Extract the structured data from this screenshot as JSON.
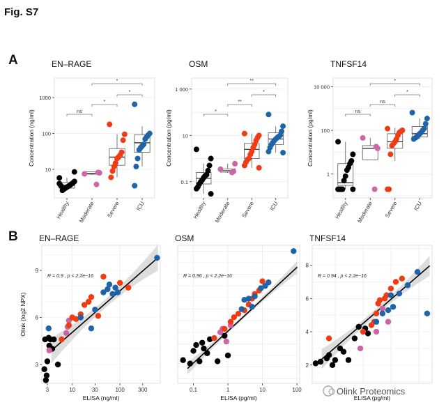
{
  "figure": {
    "title": "Fig. S7",
    "panel_a_label": "A",
    "panel_b_label": "B",
    "watermark": "Olink Proteomics"
  },
  "colors": {
    "Healthy": "#000000",
    "Moderate": "#cc66a5",
    "Severe": "#f03c14",
    "ICU": "#1f63a8",
    "fit_line": "#000000",
    "ci_band": "#cfcfcf",
    "grid": "#ebebeb"
  },
  "chart_data": [
    {
      "type": "boxplot",
      "title": "EN–RAGE",
      "ylabel": "Concentration (ng/ml)",
      "yscale": "log10",
      "ylim": [
        1.6,
        3500
      ],
      "yticks": [
        10,
        100,
        1000
      ],
      "ytick_labels": [
        "10",
        "100",
        "1000"
      ],
      "categories": [
        "Healthy",
        "Moderate",
        "Severe",
        "ICU"
      ],
      "groups": [
        {
          "name": "Healthy",
          "values": [
            5.8,
            4.6,
            4.2,
            3.9,
            3.6,
            3.4,
            3.2,
            3.0,
            2.8,
            2.6,
            3.5,
            4.0,
            8.5
          ]
        },
        {
          "name": "Moderate",
          "values": [
            7.5,
            8.0,
            8.2,
            3.8
          ]
        },
        {
          "name": "Severe",
          "values": [
            180,
            95,
            65,
            30,
            25,
            22,
            20,
            15,
            12,
            9,
            6
          ]
        },
        {
          "name": "ICU",
          "values": [
            650,
            100,
            90,
            80,
            70,
            50,
            45,
            40,
            35,
            20,
            12,
            3.5
          ]
        }
      ],
      "boxes": [
        {
          "q1": 3.0,
          "median": 3.6,
          "q3": 4.3,
          "low": 2.6,
          "high": 5.8
        },
        {
          "q1": 7.3,
          "median": 7.8,
          "q3": 8.6,
          "low": 7.0,
          "high": 8.8
        },
        {
          "q1": 13,
          "median": 22,
          "q3": 38,
          "low": 6,
          "high": 95
        },
        {
          "q1": 30,
          "median": 55,
          "q3": 92,
          "low": 12,
          "high": 160
        }
      ],
      "significance": [
        {
          "from": "Healthy",
          "to": "Moderate",
          "label": "ns"
        },
        {
          "from": "Moderate",
          "to": "Severe",
          "label": "*"
        },
        {
          "from": "Severe",
          "to": "ICU",
          "label": "*"
        },
        {
          "from": "Moderate",
          "to": "ICU",
          "label": "*"
        }
      ]
    },
    {
      "type": "boxplot",
      "title": "OSM",
      "ylabel": "Concentration (pg/ml)",
      "yscale": "log10",
      "ylim": [
        0.02,
        3000
      ],
      "yticks": [
        0.1,
        10,
        1000
      ],
      "ytick_labels": [
        "0.1",
        "10",
        "1 000"
      ],
      "categories": [
        "Healthy",
        "Moderate",
        "Severe",
        "ICU"
      ],
      "groups": [
        {
          "name": "Healthy",
          "values": [
            2.5,
            1.0,
            0.5,
            0.3,
            0.2,
            0.18,
            0.15,
            0.12,
            0.1,
            0.08,
            0.06,
            0.05,
            0.03
          ]
        },
        {
          "name": "Moderate",
          "values": [
            0.35,
            0.6,
            0.28,
            0.25
          ]
        },
        {
          "name": "Severe",
          "values": [
            12,
            10,
            8,
            6,
            4,
            3,
            2,
            1.5,
            1.0,
            0.9,
            0.7,
            0.5,
            0.4
          ]
        },
        {
          "name": "ICU",
          "values": [
            80,
            25,
            15,
            10,
            9,
            8,
            7,
            6,
            5,
            4,
            3,
            2,
            1.8
          ]
        }
      ],
      "boxes": [
        {
          "q1": 0.08,
          "median": 0.14,
          "q3": 0.25,
          "low": 0.03,
          "high": 0.6
        },
        {
          "q1": 0.26,
          "median": 0.3,
          "q3": 0.36,
          "low": 0.24,
          "high": 0.6
        },
        {
          "q1": 1.0,
          "median": 2.5,
          "q3": 4.5,
          "low": 0.4,
          "high": 12
        },
        {
          "q1": 4.0,
          "median": 7.0,
          "q3": 13,
          "low": 1.8,
          "high": 25
        }
      ],
      "significance": [
        {
          "from": "Healthy",
          "to": "Moderate",
          "label": "*"
        },
        {
          "from": "Moderate",
          "to": "Severe",
          "label": "**"
        },
        {
          "from": "Severe",
          "to": "ICU",
          "label": "*"
        },
        {
          "from": "Moderate",
          "to": "ICU",
          "label": "**"
        }
      ]
    },
    {
      "type": "boxplot",
      "title": "TNFSF14",
      "ylabel": "Concentration (pg/ml)",
      "yscale": "log10",
      "ylim": [
        0.08,
        25000
      ],
      "yticks": [
        1,
        100,
        10000
      ],
      "ytick_labels": [
        "1",
        "100",
        "10 000"
      ],
      "categories": [
        "Healthy",
        "Moderate",
        "Severe",
        "ICU"
      ],
      "groups": [
        {
          "name": "Healthy",
          "values": [
            30,
            8,
            4,
            3,
            2,
            1.5,
            0.8,
            0.5,
            0.2,
            0.2,
            0.2,
            0.2,
            0.2
          ]
        },
        {
          "name": "Moderate",
          "values": [
            45,
            15,
            18,
            0.2
          ]
        },
        {
          "name": "Severe",
          "values": [
            120,
            100,
            90,
            80,
            60,
            40,
            30,
            25,
            20,
            8,
            0.2,
            0.2
          ]
        },
        {
          "name": "ICU",
          "values": [
            650,
            350,
            200,
            120,
            100,
            80,
            70,
            60,
            50,
            45,
            40
          ]
        }
      ],
      "boxes": [
        {
          "q1": 0.3,
          "median": 0.4,
          "q3": 3.0,
          "low": 0.2,
          "high": 30
        },
        {
          "q1": 4.5,
          "median": 15,
          "q3": 20,
          "low": 4.5,
          "high": 45
        },
        {
          "q1": 15,
          "median": 30,
          "q3": 70,
          "low": 4,
          "high": 130
        },
        {
          "q1": 50,
          "median": 70,
          "q3": 150,
          "low": 40,
          "high": 350
        }
      ],
      "significance": [
        {
          "from": "Healthy",
          "to": "Moderate",
          "label": "ns"
        },
        {
          "from": "Moderate",
          "to": "Severe",
          "label": "ns"
        },
        {
          "from": "Severe",
          "to": "ICU",
          "label": "*"
        },
        {
          "from": "Moderate",
          "to": "ICU",
          "label": "*"
        }
      ]
    },
    {
      "type": "scatter",
      "title": "EN–RAGE",
      "xlabel": "ELISA (ng/ml)",
      "ylabel": "Olink (log2 NPX)",
      "xscale": "log10",
      "xlim": [
        2.3,
        700
      ],
      "ylim": [
        1.8,
        10.6
      ],
      "xticks": [
        3,
        10,
        30,
        100,
        300
      ],
      "xtick_labels": [
        "3",
        "10",
        "30",
        "100",
        "300"
      ],
      "yticks": [
        3,
        6,
        9
      ],
      "ytick_labels": [
        "3",
        "6",
        "9"
      ],
      "annotation": "R = 0.9 , p < 2.2e−16",
      "fit": {
        "intercept": 2.4,
        "slope": 2.65,
        "ci": 0.55
      },
      "points": [
        {
          "x": 2.8,
          "y": 2.0,
          "g": "Healthy"
        },
        {
          "x": 2.9,
          "y": 2.3,
          "g": "Healthy"
        },
        {
          "x": 3.0,
          "y": 3.2,
          "g": "Healthy"
        },
        {
          "x": 3.2,
          "y": 4.7,
          "g": "Healthy"
        },
        {
          "x": 3.3,
          "y": 4.2,
          "g": "Healthy"
        },
        {
          "x": 3.5,
          "y": 4.6,
          "g": "Healthy"
        },
        {
          "x": 3.8,
          "y": 4.0,
          "g": "Healthy"
        },
        {
          "x": 4.1,
          "y": 4.6,
          "g": "Healthy"
        },
        {
          "x": 5.0,
          "y": 3.0,
          "g": "Healthy"
        },
        {
          "x": 2.7,
          "y": 4.6,
          "g": "Healthy"
        },
        {
          "x": 2.6,
          "y": 2.7,
          "g": "Healthy"
        },
        {
          "x": 3.3,
          "y": 3.9,
          "g": "Moderate"
        },
        {
          "x": 7.5,
          "y": 5.0,
          "g": "Moderate"
        },
        {
          "x": 8.0,
          "y": 5.4,
          "g": "Moderate"
        },
        {
          "x": 8.5,
          "y": 5.8,
          "g": "Moderate"
        },
        {
          "x": 6.0,
          "y": 4.6,
          "g": "Severe"
        },
        {
          "x": 8.5,
          "y": 5.5,
          "g": "Severe"
        },
        {
          "x": 10,
          "y": 6.0,
          "g": "Severe"
        },
        {
          "x": 12,
          "y": 5.9,
          "g": "Severe"
        },
        {
          "x": 15,
          "y": 6.2,
          "g": "Severe"
        },
        {
          "x": 18,
          "y": 6.8,
          "g": "Severe"
        },
        {
          "x": 22,
          "y": 7.0,
          "g": "Severe"
        },
        {
          "x": 25,
          "y": 7.3,
          "g": "Severe"
        },
        {
          "x": 35,
          "y": 6.1,
          "g": "Severe"
        },
        {
          "x": 45,
          "y": 8.6,
          "g": "Severe"
        },
        {
          "x": 100,
          "y": 8.2,
          "g": "Severe"
        },
        {
          "x": 150,
          "y": 7.9,
          "g": "Severe"
        },
        {
          "x": 3.2,
          "y": 5.3,
          "g": "ICU"
        },
        {
          "x": 15,
          "y": 6.0,
          "g": "ICU"
        },
        {
          "x": 25,
          "y": 5.3,
          "g": "ICU"
        },
        {
          "x": 30,
          "y": 6.5,
          "g": "ICU"
        },
        {
          "x": 45,
          "y": 7.6,
          "g": "ICU"
        },
        {
          "x": 55,
          "y": 7.8,
          "g": "ICU"
        },
        {
          "x": 60,
          "y": 8.1,
          "g": "ICU"
        },
        {
          "x": 70,
          "y": 7.5,
          "g": "ICU"
        },
        {
          "x": 80,
          "y": 7.9,
          "g": "ICU"
        },
        {
          "x": 90,
          "y": 7.6,
          "g": "ICU"
        },
        {
          "x": 600,
          "y": 9.8,
          "g": "ICU"
        }
      ]
    },
    {
      "type": "scatter",
      "title": "OSM",
      "xlabel": "ELISA (pg/ml)",
      "ylabel": "",
      "xscale": "log10",
      "xlim": [
        0.035,
        120
      ],
      "ylim": [
        -0.4,
        11.5
      ],
      "xticks": [
        0.1,
        1,
        10,
        100
      ],
      "xtick_labels": [
        "0.1",
        "1",
        "10",
        "100"
      ],
      "yticks": [],
      "ytick_labels": [],
      "annotation": "R = 0.96 , p < 2.2e−16",
      "fit": {
        "intercept": 4.1,
        "slope": 2.75,
        "ci": 0.35
      },
      "points": [
        {
          "x": 0.05,
          "y": 1.6,
          "g": "Healthy"
        },
        {
          "x": 0.08,
          "y": 1.3,
          "g": "Healthy"
        },
        {
          "x": 0.1,
          "y": 2.4,
          "g": "Healthy"
        },
        {
          "x": 0.12,
          "y": 2.9,
          "g": "Healthy"
        },
        {
          "x": 0.15,
          "y": 1.5,
          "g": "Healthy"
        },
        {
          "x": 0.18,
          "y": 3.1,
          "g": "Healthy"
        },
        {
          "x": 0.2,
          "y": 2.6,
          "g": "Healthy"
        },
        {
          "x": 0.25,
          "y": 2.2,
          "g": "Healthy"
        },
        {
          "x": 0.3,
          "y": 3.4,
          "g": "Healthy"
        },
        {
          "x": 0.5,
          "y": 1.5,
          "g": "Healthy"
        },
        {
          "x": 0.8,
          "y": 3.7,
          "g": "Healthy"
        },
        {
          "x": 1.0,
          "y": 2.0,
          "g": "Healthy"
        },
        {
          "x": 0.6,
          "y": 4.0,
          "g": "Moderate"
        },
        {
          "x": 0.7,
          "y": 4.3,
          "g": "Moderate"
        },
        {
          "x": 0.9,
          "y": 3.2,
          "g": "Moderate"
        },
        {
          "x": 1.2,
          "y": 4.6,
          "g": "Moderate"
        },
        {
          "x": 0.4,
          "y": 3.5,
          "g": "Severe"
        },
        {
          "x": 0.8,
          "y": 4.3,
          "g": "Severe"
        },
        {
          "x": 1.2,
          "y": 4.9,
          "g": "Severe"
        },
        {
          "x": 1.5,
          "y": 5.3,
          "g": "Severe"
        },
        {
          "x": 2.0,
          "y": 5.6,
          "g": "Severe"
        },
        {
          "x": 3.0,
          "y": 5.9,
          "g": "Severe"
        },
        {
          "x": 4.0,
          "y": 6.4,
          "g": "Severe"
        },
        {
          "x": 5.0,
          "y": 6.9,
          "g": "Severe"
        },
        {
          "x": 6.0,
          "y": 7.3,
          "g": "Severe"
        },
        {
          "x": 8.0,
          "y": 7.6,
          "g": "Severe"
        },
        {
          "x": 10,
          "y": 8.4,
          "g": "Severe"
        },
        {
          "x": 2.5,
          "y": 6.0,
          "g": "ICU"
        },
        {
          "x": 3.0,
          "y": 6.8,
          "g": "ICU"
        },
        {
          "x": 4.0,
          "y": 6.9,
          "g": "ICU"
        },
        {
          "x": 5.0,
          "y": 6.2,
          "g": "ICU"
        },
        {
          "x": 6.0,
          "y": 7.1,
          "g": "ICU"
        },
        {
          "x": 9.0,
          "y": 7.8,
          "g": "ICU"
        },
        {
          "x": 12,
          "y": 8.0,
          "g": "ICU"
        },
        {
          "x": 15,
          "y": 8.3,
          "g": "ICU"
        },
        {
          "x": 80,
          "y": 11.0,
          "g": "ICU"
        }
      ]
    },
    {
      "type": "scatter",
      "title": "TNFSF14",
      "xlabel": "ELISA (pg/ml)",
      "ylabel": "",
      "xscale": "log10",
      "xlim": [
        0.15,
        3000
      ],
      "ylim": [
        0.9,
        9.2
      ],
      "xticks": [],
      "xtick_labels": [],
      "yticks": [
        2,
        4,
        6,
        8
      ],
      "ytick_labels": [
        "2",
        "4",
        "6",
        "8"
      ],
      "annotation": "R = 0.94 , p < 2.2e−16",
      "fit": {
        "intercept": 3.05,
        "slope": 1.45,
        "ci": 0.4
      },
      "points": [
        {
          "x": 0.2,
          "y": 2.1,
          "g": "Healthy"
        },
        {
          "x": 0.3,
          "y": 2.2,
          "g": "Healthy"
        },
        {
          "x": 0.5,
          "y": 2.4,
          "g": "Healthy"
        },
        {
          "x": 0.6,
          "y": 2.6,
          "g": "Healthy"
        },
        {
          "x": 0.8,
          "y": 2.0,
          "g": "Healthy"
        },
        {
          "x": 1.0,
          "y": 2.3,
          "g": "Healthy"
        },
        {
          "x": 1.5,
          "y": 3.0,
          "g": "Healthy"
        },
        {
          "x": 2.0,
          "y": 2.8,
          "g": "Healthy"
        },
        {
          "x": 3.0,
          "y": 2.3,
          "g": "Healthy"
        },
        {
          "x": 5.0,
          "y": 3.6,
          "g": "Healthy"
        },
        {
          "x": 7.0,
          "y": 4.3,
          "g": "Healthy"
        },
        {
          "x": 12,
          "y": 4.2,
          "g": "Healthy"
        },
        {
          "x": 15,
          "y": 3.9,
          "g": "Healthy"
        },
        {
          "x": 8.0,
          "y": 3.0,
          "g": "Moderate"
        },
        {
          "x": 30,
          "y": 4.0,
          "g": "Moderate"
        },
        {
          "x": 50,
          "y": 5.4,
          "g": "Moderate"
        },
        {
          "x": 80,
          "y": 4.6,
          "g": "Moderate"
        },
        {
          "x": 0.6,
          "y": 3.6,
          "g": "Severe"
        },
        {
          "x": 10,
          "y": 4.0,
          "g": "Severe"
        },
        {
          "x": 20,
          "y": 4.4,
          "g": "Severe"
        },
        {
          "x": 25,
          "y": 4.6,
          "g": "Severe"
        },
        {
          "x": 30,
          "y": 5.1,
          "g": "Severe"
        },
        {
          "x": 35,
          "y": 5.7,
          "g": "Severe"
        },
        {
          "x": 40,
          "y": 5.9,
          "g": "Severe"
        },
        {
          "x": 60,
          "y": 6.0,
          "g": "Severe"
        },
        {
          "x": 70,
          "y": 6.2,
          "g": "Severe"
        },
        {
          "x": 100,
          "y": 6.6,
          "g": "Severe"
        },
        {
          "x": 150,
          "y": 7.0,
          "g": "Severe"
        },
        {
          "x": 250,
          "y": 7.2,
          "g": "Severe"
        },
        {
          "x": 30,
          "y": 4.6,
          "g": "ICU"
        },
        {
          "x": 50,
          "y": 5.1,
          "g": "ICU"
        },
        {
          "x": 80,
          "y": 5.3,
          "g": "ICU"
        },
        {
          "x": 100,
          "y": 6.2,
          "g": "ICU"
        },
        {
          "x": 120,
          "y": 5.5,
          "g": "ICU"
        },
        {
          "x": 200,
          "y": 6.3,
          "g": "ICU"
        },
        {
          "x": 400,
          "y": 6.8,
          "g": "ICU"
        },
        {
          "x": 900,
          "y": 7.6,
          "g": "ICU"
        },
        {
          "x": 2000,
          "y": 5.1,
          "g": "ICU"
        }
      ]
    }
  ]
}
